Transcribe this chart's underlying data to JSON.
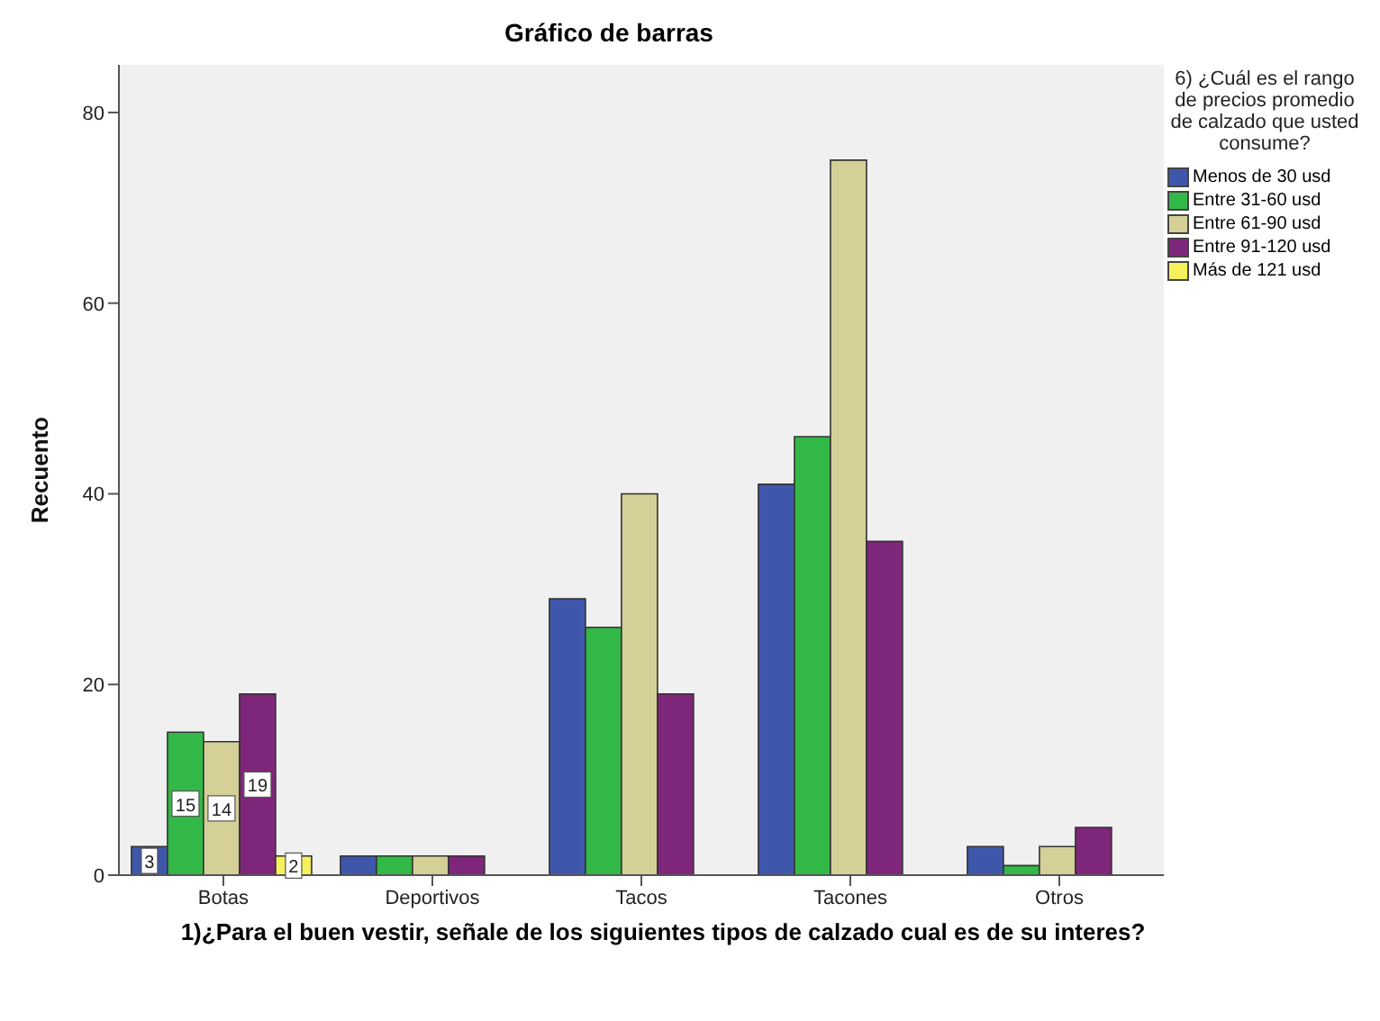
{
  "chart_data": {
    "type": "bar",
    "title": "Gráfico de barras",
    "xlabel": "1)¿Para el buen vestir, señale de los siguientes tipos de calzado cual es de su interes?",
    "ylabel": "Recuento",
    "legend_title": "6) ¿Cuál es el rango de precios promedio de calzado que usted consume?",
    "legend": "top right",
    "categories": [
      "Botas",
      "Deportivos",
      "Tacos",
      "Tacones",
      "Otros"
    ],
    "ylim": [
      0,
      85
    ],
    "yticks": [
      0,
      20,
      40,
      60,
      80
    ],
    "series": [
      {
        "name": "Menos de 30 usd",
        "color": "#3f57ab",
        "values": [
          3,
          2,
          29,
          41,
          3
        ],
        "value_labels": [
          "3",
          null,
          null,
          null,
          null
        ]
      },
      {
        "name": "Entre 31-60 usd",
        "color": "#32b846",
        "values": [
          15,
          2,
          26,
          46,
          1
        ],
        "value_labels": [
          "15",
          null,
          null,
          null,
          null
        ]
      },
      {
        "name": "Entre 61-90 usd",
        "color": "#d5d098",
        "values": [
          14,
          2,
          40,
          75,
          3
        ],
        "value_labels": [
          "14",
          null,
          null,
          null,
          null
        ]
      },
      {
        "name": "Entre 91-120 usd",
        "color": "#7e2679",
        "values": [
          19,
          2,
          19,
          35,
          5
        ],
        "value_labels": [
          "19",
          null,
          null,
          null,
          null
        ]
      },
      {
        "name": "Más de 121 usd",
        "color": "#f5f05c",
        "values": [
          2,
          null,
          null,
          null,
          null
        ],
        "value_labels": [
          "2",
          null,
          null,
          null,
          null
        ]
      }
    ]
  }
}
